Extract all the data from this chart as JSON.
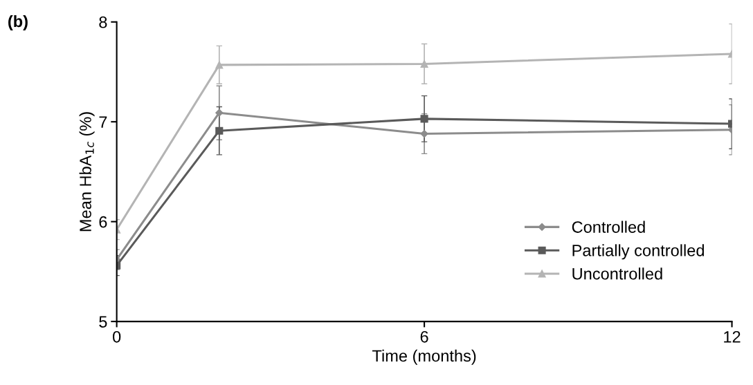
{
  "chart_data": {
    "type": "line",
    "xlabel": "Time (months)",
    "ylabel": "Mean HbA$_{1c}$ (%)",
    "annotations": [
      "(b)"
    ],
    "x": [
      0,
      2,
      6,
      12
    ],
    "xlim": [
      0,
      12
    ],
    "xticks": [
      0,
      6,
      12
    ],
    "ylim": [
      5,
      8
    ],
    "yticks": [
      5,
      6,
      7,
      8
    ],
    "grid": false,
    "legend": "bottom right",
    "line_style": "solid",
    "series": [
      {
        "name": "Controlled",
        "color": "#8c8c8c",
        "marker": "diamond",
        "values": [
          5.62,
          7.09,
          6.88,
          6.92
        ],
        "errors": [
          0.1,
          0.27,
          0.2,
          0.25
        ]
      },
      {
        "name": "Partially controlled",
        "color": "#5a5a5a",
        "marker": "square",
        "values": [
          5.56,
          6.91,
          7.03,
          6.98
        ],
        "errors": [
          0.1,
          0.24,
          0.23,
          0.25
        ]
      },
      {
        "name": "Uncontrolled",
        "color": "#b4b4b4",
        "marker": "triangle",
        "values": [
          5.92,
          7.57,
          7.58,
          7.68
        ],
        "errors": [
          0.1,
          0.19,
          0.2,
          0.3
        ]
      }
    ]
  }
}
